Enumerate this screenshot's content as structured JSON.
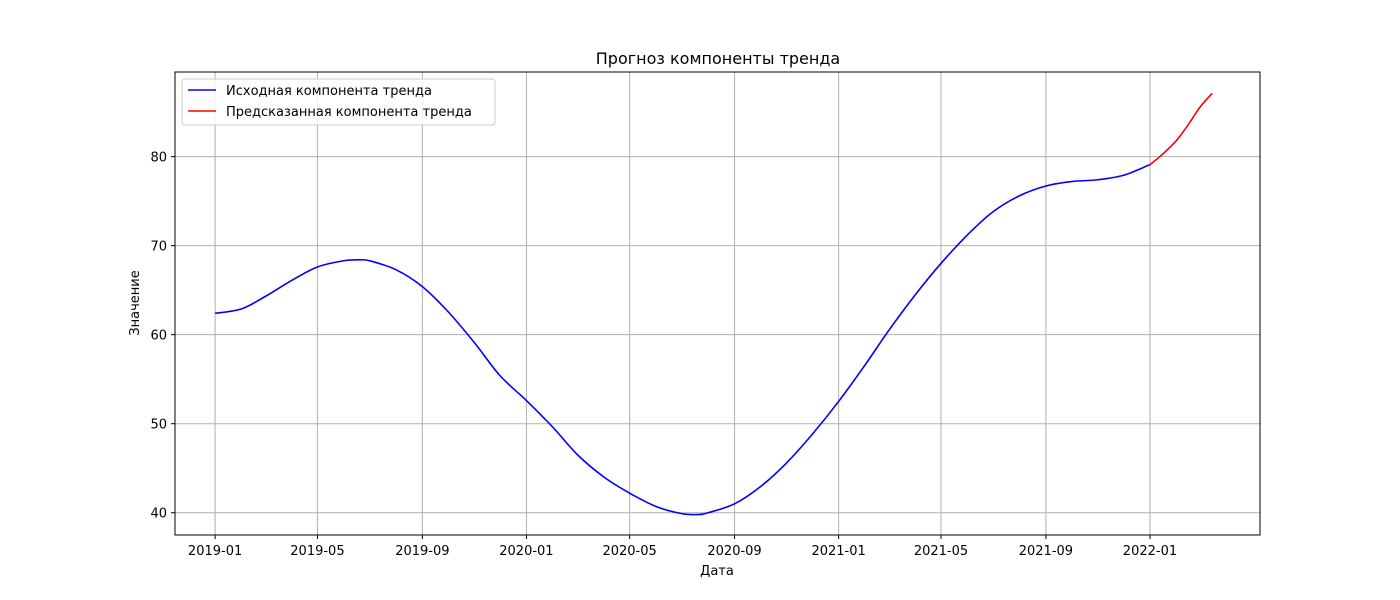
{
  "chart_data": {
    "type": "line",
    "title": "Прогноз компоненты тренда",
    "xlabel": "Дата",
    "ylabel": "Значение",
    "x_axis": "date",
    "xlim": [
      "2018-11-15",
      "2022-05-10"
    ],
    "ylim": [
      37.5,
      89.5
    ],
    "grid": true,
    "legend_position": "top-left",
    "x_tick_labels": [
      "2019-01",
      "2019-05",
      "2019-09",
      "2020-01",
      "2020-05",
      "2020-09",
      "2021-01",
      "2021-05",
      "2021-09",
      "2022-01"
    ],
    "y_ticks": [
      40,
      50,
      60,
      70,
      80
    ],
    "series": [
      {
        "name": "Исходная компонента тренда",
        "color": "#0000ff",
        "points": [
          [
            "2019-01-01",
            62.4
          ],
          [
            "2019-02-01",
            62.9
          ],
          [
            "2019-03-01",
            64.3
          ],
          [
            "2019-04-01",
            66.1
          ],
          [
            "2019-05-01",
            67.6
          ],
          [
            "2019-06-01",
            68.3
          ],
          [
            "2019-06-20",
            68.4
          ],
          [
            "2019-07-01",
            68.3
          ],
          [
            "2019-08-01",
            67.3
          ],
          [
            "2019-09-01",
            65.4
          ],
          [
            "2019-10-01",
            62.6
          ],
          [
            "2019-11-01",
            59.1
          ],
          [
            "2019-12-01",
            55.4
          ],
          [
            "2020-01-01",
            52.6
          ],
          [
            "2020-02-01",
            49.6
          ],
          [
            "2020-03-01",
            46.5
          ],
          [
            "2020-04-01",
            44.0
          ],
          [
            "2020-05-01",
            42.2
          ],
          [
            "2020-06-01",
            40.7
          ],
          [
            "2020-07-01",
            39.9
          ],
          [
            "2020-07-20",
            39.8
          ],
          [
            "2020-08-01",
            40.0
          ],
          [
            "2020-09-01",
            41.0
          ],
          [
            "2020-10-01",
            42.9
          ],
          [
            "2020-11-01",
            45.6
          ],
          [
            "2020-12-01",
            48.8
          ],
          [
            "2021-01-01",
            52.5
          ],
          [
            "2021-02-01",
            56.6
          ],
          [
            "2021-03-01",
            60.5
          ],
          [
            "2021-04-01",
            64.5
          ],
          [
            "2021-05-01",
            68.0
          ],
          [
            "2021-06-01",
            71.2
          ],
          [
            "2021-07-01",
            73.8
          ],
          [
            "2021-08-01",
            75.6
          ],
          [
            "2021-09-01",
            76.7
          ],
          [
            "2021-10-01",
            77.2
          ],
          [
            "2021-11-01",
            77.4
          ],
          [
            "2021-12-01",
            77.9
          ],
          [
            "2022-01-01",
            79.1
          ]
        ]
      },
      {
        "name": "Предсказанная компонента тренда",
        "color": "#ff0000",
        "points": [
          [
            "2022-01-01",
            79.1
          ],
          [
            "2022-01-15",
            80.2
          ],
          [
            "2022-02-01",
            81.8
          ],
          [
            "2022-02-15",
            83.6
          ],
          [
            "2022-03-01",
            85.6
          ],
          [
            "2022-03-15",
            87.1
          ]
        ]
      }
    ]
  }
}
